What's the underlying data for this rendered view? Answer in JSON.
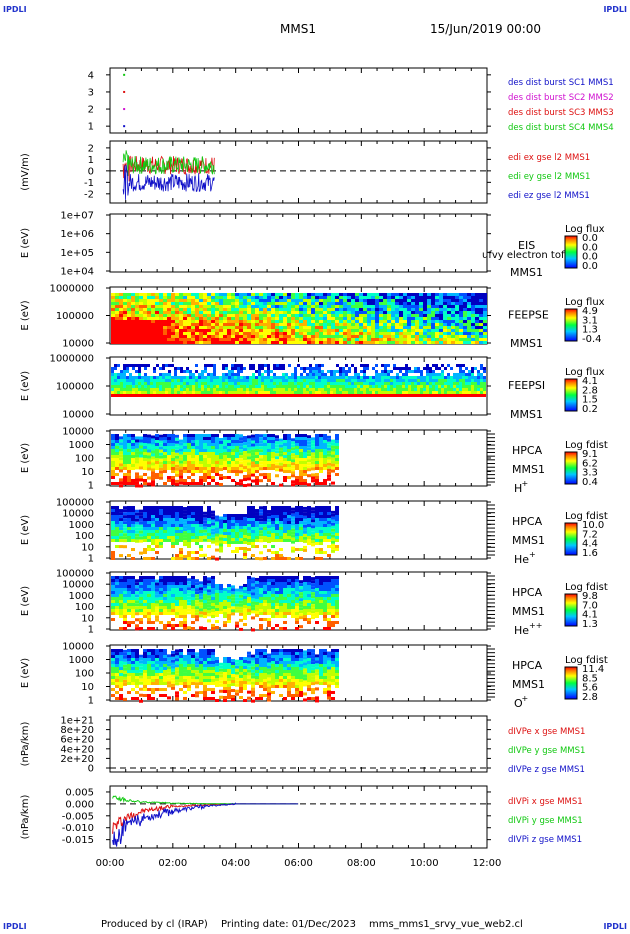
{
  "page": {
    "corner_label": "IPDLI",
    "title": "MMS1",
    "datetime": "15/Jun/2019 00:00",
    "footer_producer": "Produced by cl (IRAP)",
    "footer_date": "Printing date: 01/Dec/2023",
    "footer_file": "mms_mms1_srvy_vue_web2.cl"
  },
  "colors": {
    "blue": "#1010c8",
    "magenta": "#d010d0",
    "red": "#dd1010",
    "green": "#10c810",
    "black": "#000000"
  },
  "chart_data": [
    {
      "id": "panel-des-dist",
      "type": "scatter",
      "yticks": [
        "1",
        "2",
        "3",
        "4"
      ],
      "ylim": [
        0.6,
        4.4
      ],
      "series": [
        {
          "name": "des dist burst SC1 MMS1",
          "color": "#1010c8",
          "x": [
            "00:27"
          ],
          "y": [
            1
          ]
        },
        {
          "name": "des dist burst SC2 MMS2",
          "color": "#d010d0",
          "x": [
            "00:27"
          ],
          "y": [
            2
          ]
        },
        {
          "name": "des dist burst SC3 MMS3",
          "color": "#dd1010",
          "x": [
            "00:27"
          ],
          "y": [
            3
          ]
        },
        {
          "name": "des dist burst SC4 MMS4",
          "color": "#10c810",
          "x": [
            "00:27"
          ],
          "y": [
            4
          ]
        }
      ]
    },
    {
      "id": "panel-edi",
      "type": "line",
      "ylabel": "(mV/m)",
      "yticks": [
        "2",
        "1",
        "0",
        "-1",
        "-2"
      ],
      "ylim": [
        -2.8,
        2.6
      ],
      "dashed_zero": true,
      "x_range": [
        "00:25",
        "03:20"
      ],
      "series": [
        {
          "name": "edi ex gse l2 MMS1",
          "color": "#dd1010",
          "approx_level": 0.5
        },
        {
          "name": "edi ey gse l2 MMS1",
          "color": "#10c810",
          "approx_level": 0.5
        },
        {
          "name": "edi ez gse l2 MMS1",
          "color": "#1010c8",
          "approx_level": -1.0
        }
      ]
    },
    {
      "id": "panel-eis",
      "type": "heatmap",
      "ylabel": "E (eV)",
      "yticks": [
        "1e+07",
        "1e+06",
        "1e+05",
        "1e+04"
      ],
      "instrument": "EIS",
      "sc": "MMS1",
      "overlay_text": "ufvy electron tof",
      "colorbar_title": "Log flux",
      "colorbar_ticks": [
        "0.0",
        "0.0",
        "0.0",
        "0.0"
      ]
    },
    {
      "id": "panel-feepse",
      "type": "heatmap",
      "ylabel": "E (eV)",
      "yticks": [
        "1000000",
        "100000",
        "10000"
      ],
      "instrument": "FEEPSE",
      "sc": "MMS1",
      "colorbar_title": "Log flux",
      "colorbar_ticks": [
        "4.9",
        "3.1",
        "1.3",
        "-0.4"
      ]
    },
    {
      "id": "panel-feepsi",
      "type": "heatmap",
      "ylabel": "E (eV)",
      "yticks": [
        "1000000",
        "100000",
        "10000"
      ],
      "instrument": "FEEPSI",
      "sc": "MMS1",
      "colorbar_title": "Log flux",
      "colorbar_ticks": [
        "4.1",
        "2.8",
        "1.5",
        "0.2"
      ]
    },
    {
      "id": "panel-hpca-h",
      "type": "heatmap",
      "ylabel": "E (eV)",
      "yticks": [
        "10000",
        "1000",
        "100",
        "10",
        "1"
      ],
      "instrument": "HPCA",
      "sc": "MMS1",
      "species": "H",
      "species_sup": "+",
      "colorbar_title": "Log fdist",
      "colorbar_ticks": [
        "9.1",
        "6.2",
        "3.3",
        "0.4"
      ]
    },
    {
      "id": "panel-hpca-he1",
      "type": "heatmap",
      "ylabel": "E (eV)",
      "yticks": [
        "100000",
        "10000",
        "1000",
        "100",
        "10",
        "1"
      ],
      "instrument": "HPCA",
      "sc": "MMS1",
      "species": "He",
      "species_sup": "+",
      "colorbar_title": "Log fdist",
      "colorbar_ticks": [
        "10.0",
        "7.2",
        "4.4",
        "1.6"
      ]
    },
    {
      "id": "panel-hpca-he2",
      "type": "heatmap",
      "ylabel": "E (eV)",
      "yticks": [
        "100000",
        "10000",
        "1000",
        "100",
        "10",
        "1"
      ],
      "instrument": "HPCA",
      "sc": "MMS1",
      "species": "He",
      "species_sup": "++",
      "colorbar_title": "Log fdist",
      "colorbar_ticks": [
        "9.8",
        "7.0",
        "4.1",
        "1.3"
      ]
    },
    {
      "id": "panel-hpca-o",
      "type": "heatmap",
      "ylabel": "E (eV)",
      "yticks": [
        "10000",
        "1000",
        "100",
        "10",
        "1"
      ],
      "instrument": "HPCA",
      "sc": "MMS1",
      "species": "O",
      "species_sup": "+",
      "colorbar_title": "Log fdist",
      "colorbar_ticks": [
        "11.4",
        "8.5",
        "5.6",
        "2.8"
      ]
    },
    {
      "id": "panel-divpe",
      "type": "line",
      "ylabel": "(nPa/km)",
      "yticks": [
        "1e+21",
        "8e+20",
        "6e+20",
        "4e+20",
        "2e+20",
        "0"
      ],
      "dashed_zero": true,
      "series": [
        {
          "name": "dIVPe x gse MMS1",
          "color": "#dd1010"
        },
        {
          "name": "dIVPe y gse MMS1",
          "color": "#10c810"
        },
        {
          "name": "dIVPe z gse MMS1",
          "color": "#1010c8"
        }
      ]
    },
    {
      "id": "panel-divpi",
      "type": "line",
      "ylabel": "(nPa/km)",
      "yticks": [
        "0.005",
        "0.000",
        "-0.005",
        "-0.010",
        "-0.015"
      ],
      "ylim": [
        -0.0185,
        0.0075
      ],
      "dashed_zero": true,
      "series": [
        {
          "name": "dIVPi x gse MMS1",
          "color": "#dd1010",
          "x": [
            "00:05",
            "00:30",
            "01:00",
            "02:00",
            "03:00",
            "04:00",
            "06:00"
          ],
          "y": [
            -0.01,
            -0.006,
            -0.003,
            -0.001,
            -0.0005,
            0.0,
            0.0
          ]
        },
        {
          "name": "dIVPi y gse MMS1",
          "color": "#10c810",
          "x": [
            "00:05",
            "00:30",
            "01:00",
            "02:00",
            "03:00",
            "04:00",
            "06:00"
          ],
          "y": [
            0.003,
            0.0015,
            0.0008,
            0.0003,
            0.0001,
            0.0,
            0.0
          ]
        },
        {
          "name": "dIVPi z gse MMS1",
          "color": "#1010c8",
          "x": [
            "00:05",
            "00:30",
            "01:00",
            "02:00",
            "03:00",
            "04:00",
            "06:00"
          ],
          "y": [
            -0.016,
            -0.01,
            -0.006,
            -0.003,
            -0.001,
            0.0,
            0.0
          ]
        }
      ]
    }
  ],
  "x_axis": {
    "ticks": [
      "00:00",
      "02:00",
      "04:00",
      "06:00",
      "08:00",
      "10:00",
      "12:00"
    ]
  }
}
